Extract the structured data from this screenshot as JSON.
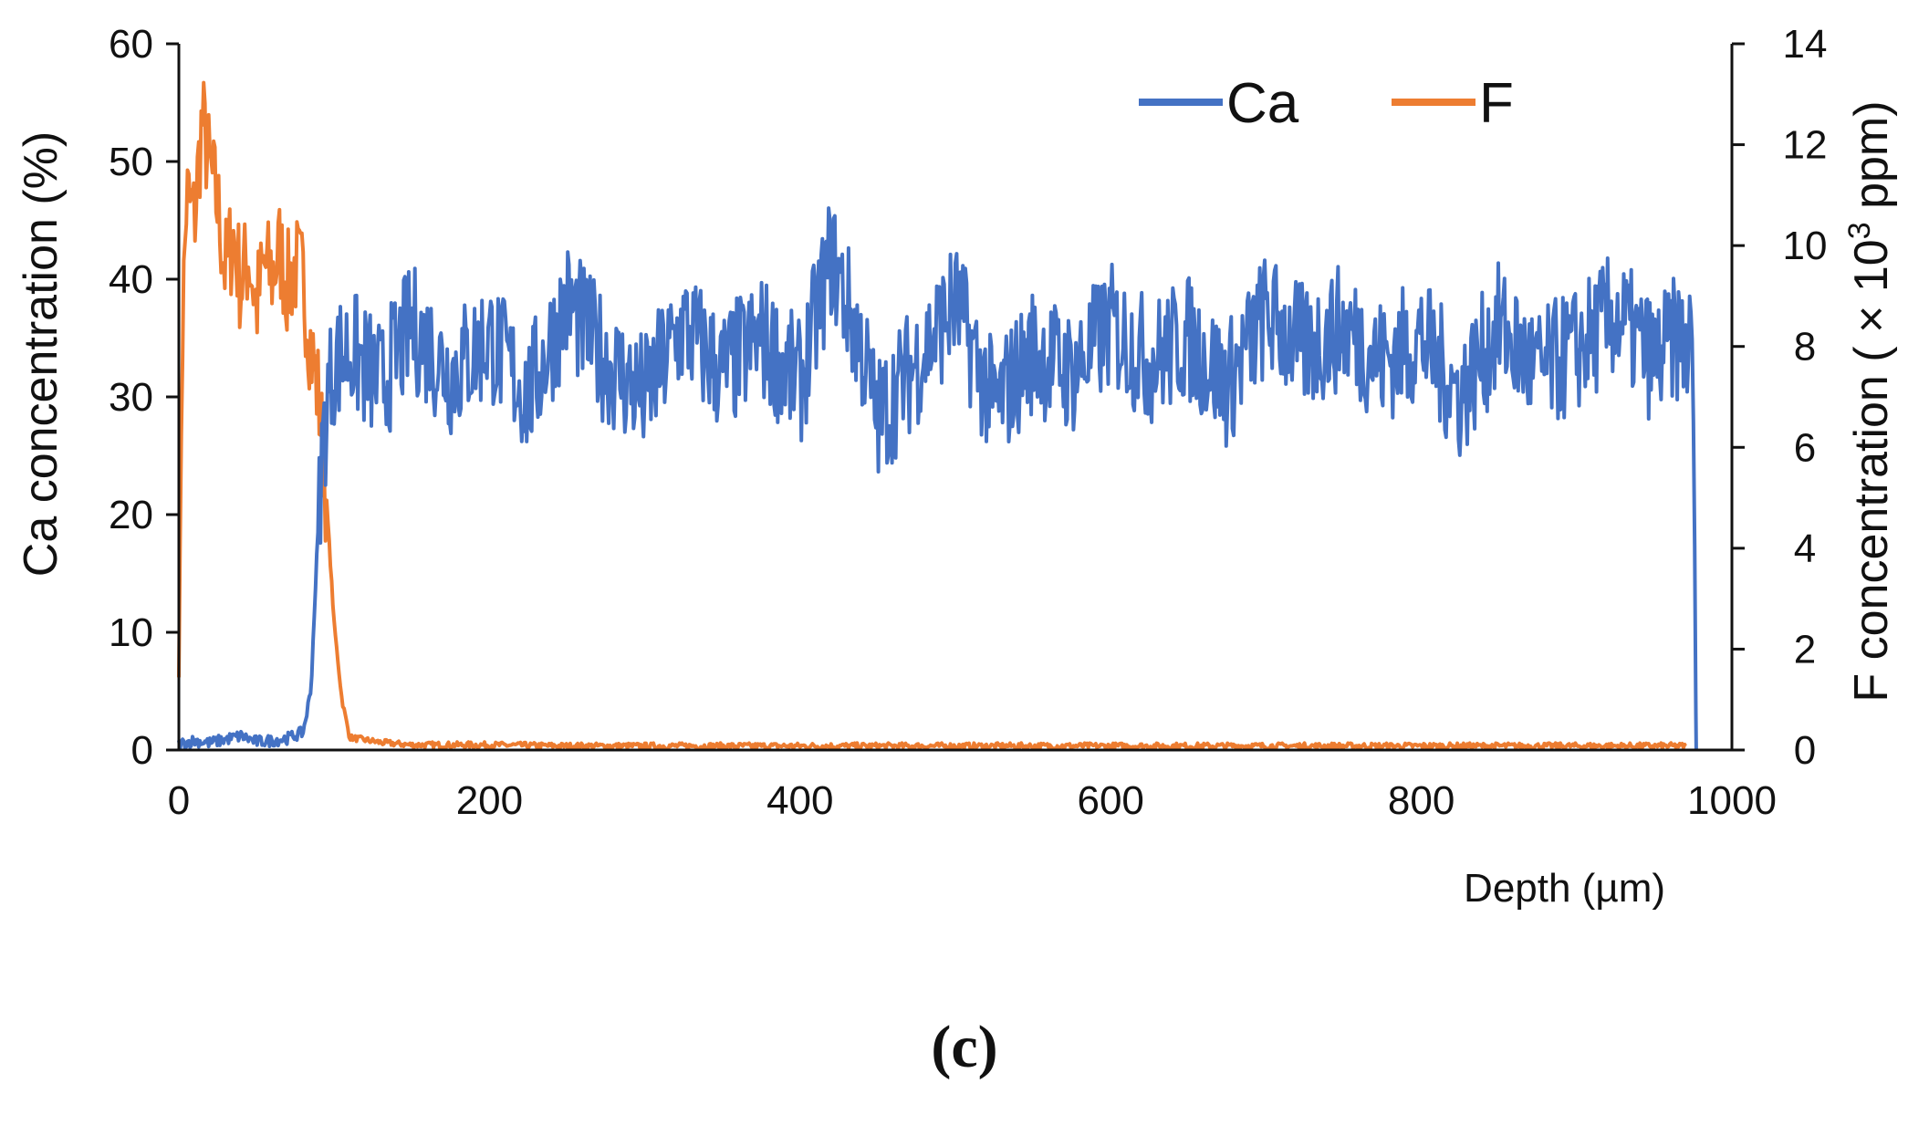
{
  "chart_data": {
    "type": "line",
    "xlabel": "Depth (µm)",
    "ylabel_left": "Ca concentration (%)",
    "ylabel_right_prefix": "F concentration ( × 10",
    "ylabel_right_sup": "3",
    "ylabel_right_suffix": " ppm)",
    "xlim": [
      0,
      1000
    ],
    "ylim_left": [
      0,
      60
    ],
    "ylim_right": [
      0,
      14
    ],
    "x_ticks": [
      "0",
      "200",
      "400",
      "600",
      "800",
      "1000"
    ],
    "y_left_ticks": [
      "0",
      "10",
      "20",
      "30",
      "40",
      "50",
      "60"
    ],
    "y_right_ticks": [
      "0",
      "2",
      "4",
      "6",
      "8",
      "10",
      "12",
      "14"
    ],
    "legend_position": "top-right",
    "grid": false,
    "series": [
      {
        "name": "Ca",
        "axis": "left",
        "color": "#4472C4",
        "x": [
          0,
          10,
          20,
          30,
          40,
          50,
          60,
          70,
          80,
          85,
          88,
          92,
          96,
          100,
          110,
          130,
          150,
          175,
          200,
          225,
          250,
          275,
          300,
          325,
          350,
          375,
          400,
          420,
          440,
          450,
          475,
          500,
          525,
          550,
          575,
          600,
          625,
          650,
          675,
          700,
          725,
          750,
          775,
          800,
          825,
          850,
          875,
          900,
          925,
          950,
          965,
          975,
          977
        ],
        "y": [
          0.5,
          0.8,
          0.6,
          0.9,
          1.2,
          0.7,
          0.8,
          1.0,
          1.5,
          5,
          14,
          25,
          30,
          33,
          34,
          31,
          36,
          32,
          35,
          30,
          38,
          33,
          30,
          36,
          32,
          35,
          31,
          42,
          34,
          28,
          33,
          38,
          29,
          34,
          32,
          36,
          33,
          35,
          31,
          37,
          34,
          36,
          33,
          35,
          30,
          36,
          32,
          34,
          37,
          33,
          35,
          34,
          0
        ]
      },
      {
        "name": "F",
        "axis": "right",
        "color": "#ED7D31",
        "x": [
          0,
          2,
          5,
          10,
          15,
          20,
          25,
          30,
          35,
          40,
          45,
          50,
          55,
          60,
          65,
          70,
          75,
          80,
          85,
          90,
          95,
          100,
          105,
          110,
          130,
          150,
          200,
          250,
          300,
          400,
          500,
          600,
          700,
          800,
          900,
          970
        ],
        "y": [
          1.5,
          8,
          11,
          10.5,
          12.5,
          11.5,
          10.8,
          9.5,
          10.2,
          9.2,
          9.8,
          8.8,
          9.6,
          9.4,
          9.9,
          9.2,
          9.6,
          9.3,
          8.0,
          7.0,
          5.0,
          2.5,
          1.0,
          0.25,
          0.15,
          0.1,
          0.1,
          0.08,
          0.08,
          0.08,
          0.08,
          0.08,
          0.08,
          0.08,
          0.08,
          0.08
        ]
      }
    ]
  },
  "caption": "(c)"
}
